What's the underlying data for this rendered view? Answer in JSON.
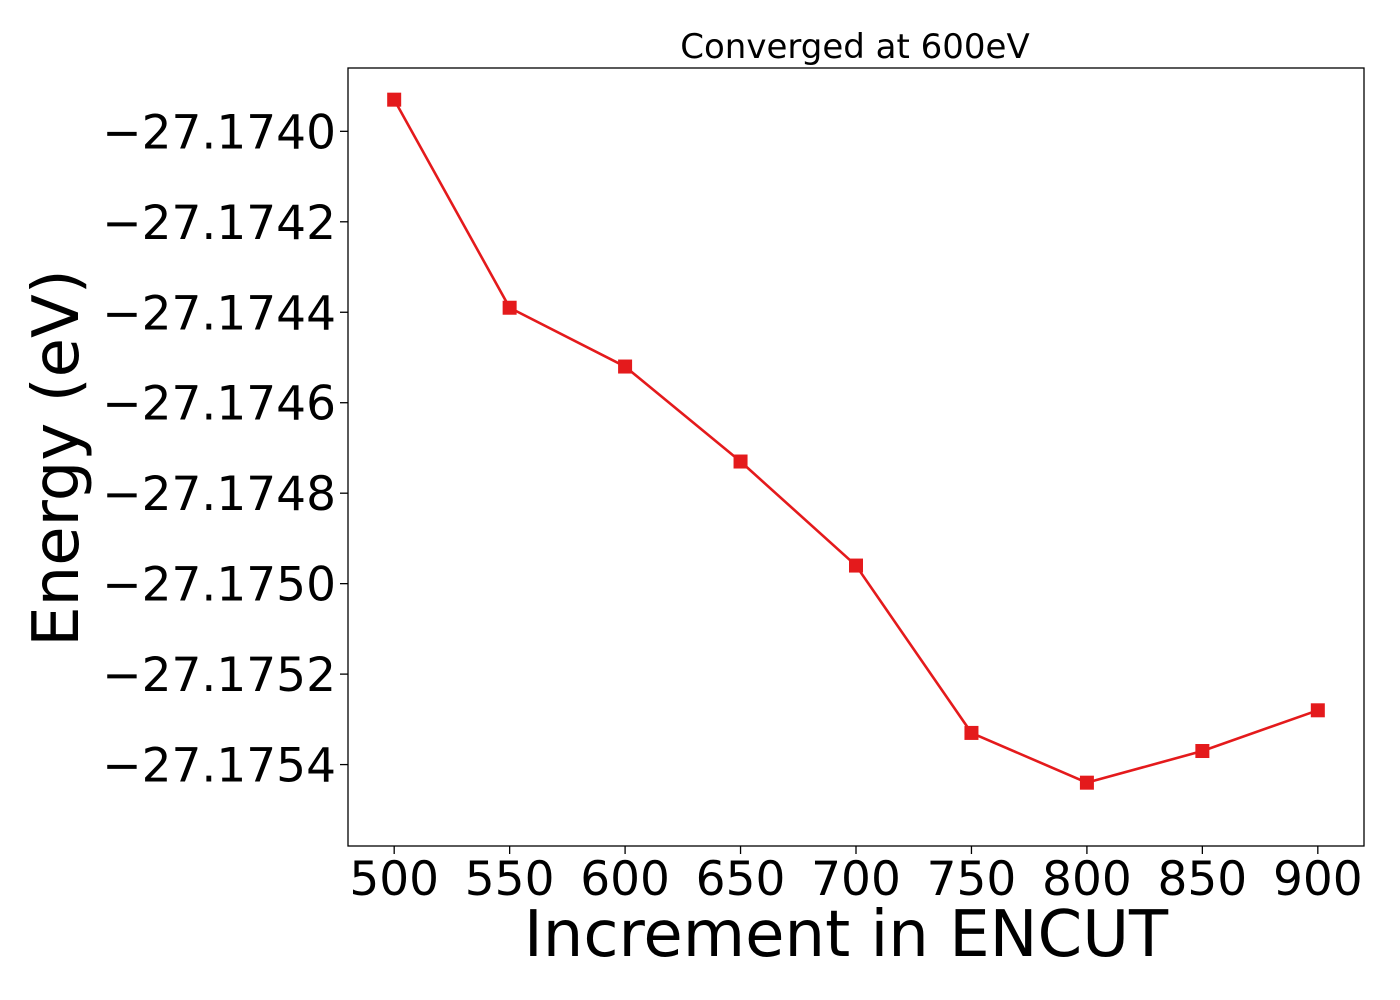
{
  "chart_data": {
    "type": "line",
    "title": "Converged at 600eV",
    "xlabel": "Increment in ENCUT",
    "ylabel": "Energy (eV)",
    "x": [
      500,
      550,
      600,
      650,
      700,
      750,
      800,
      850,
      900
    ],
    "series": [
      {
        "values": [
          -27.17393,
          -27.17439,
          -27.17452,
          -27.17473,
          -27.17496,
          -27.17533,
          -27.17544,
          -27.17537,
          -27.17528
        ],
        "color": "#e41a1c",
        "marker": "square"
      }
    ],
    "xticks": [
      500,
      550,
      600,
      650,
      700,
      750,
      800,
      850,
      900
    ],
    "xtick_labels": [
      "500",
      "550",
      "600",
      "650",
      "700",
      "750",
      "800",
      "850",
      "900"
    ],
    "yticks": [
      -27.174,
      -27.1742,
      -27.1744,
      -27.1746,
      -27.1748,
      -27.175,
      -27.1752,
      -27.1754
    ],
    "ytick_labels": [
      "−27.1740",
      "−27.1742",
      "−27.1744",
      "−27.1746",
      "−27.1748",
      "−27.1750",
      "−27.1752",
      "−27.1754"
    ],
    "xlim": [
      480,
      920
    ],
    "ylim": [
      -27.17558,
      -27.17386
    ],
    "grid": false,
    "legend": "none"
  }
}
